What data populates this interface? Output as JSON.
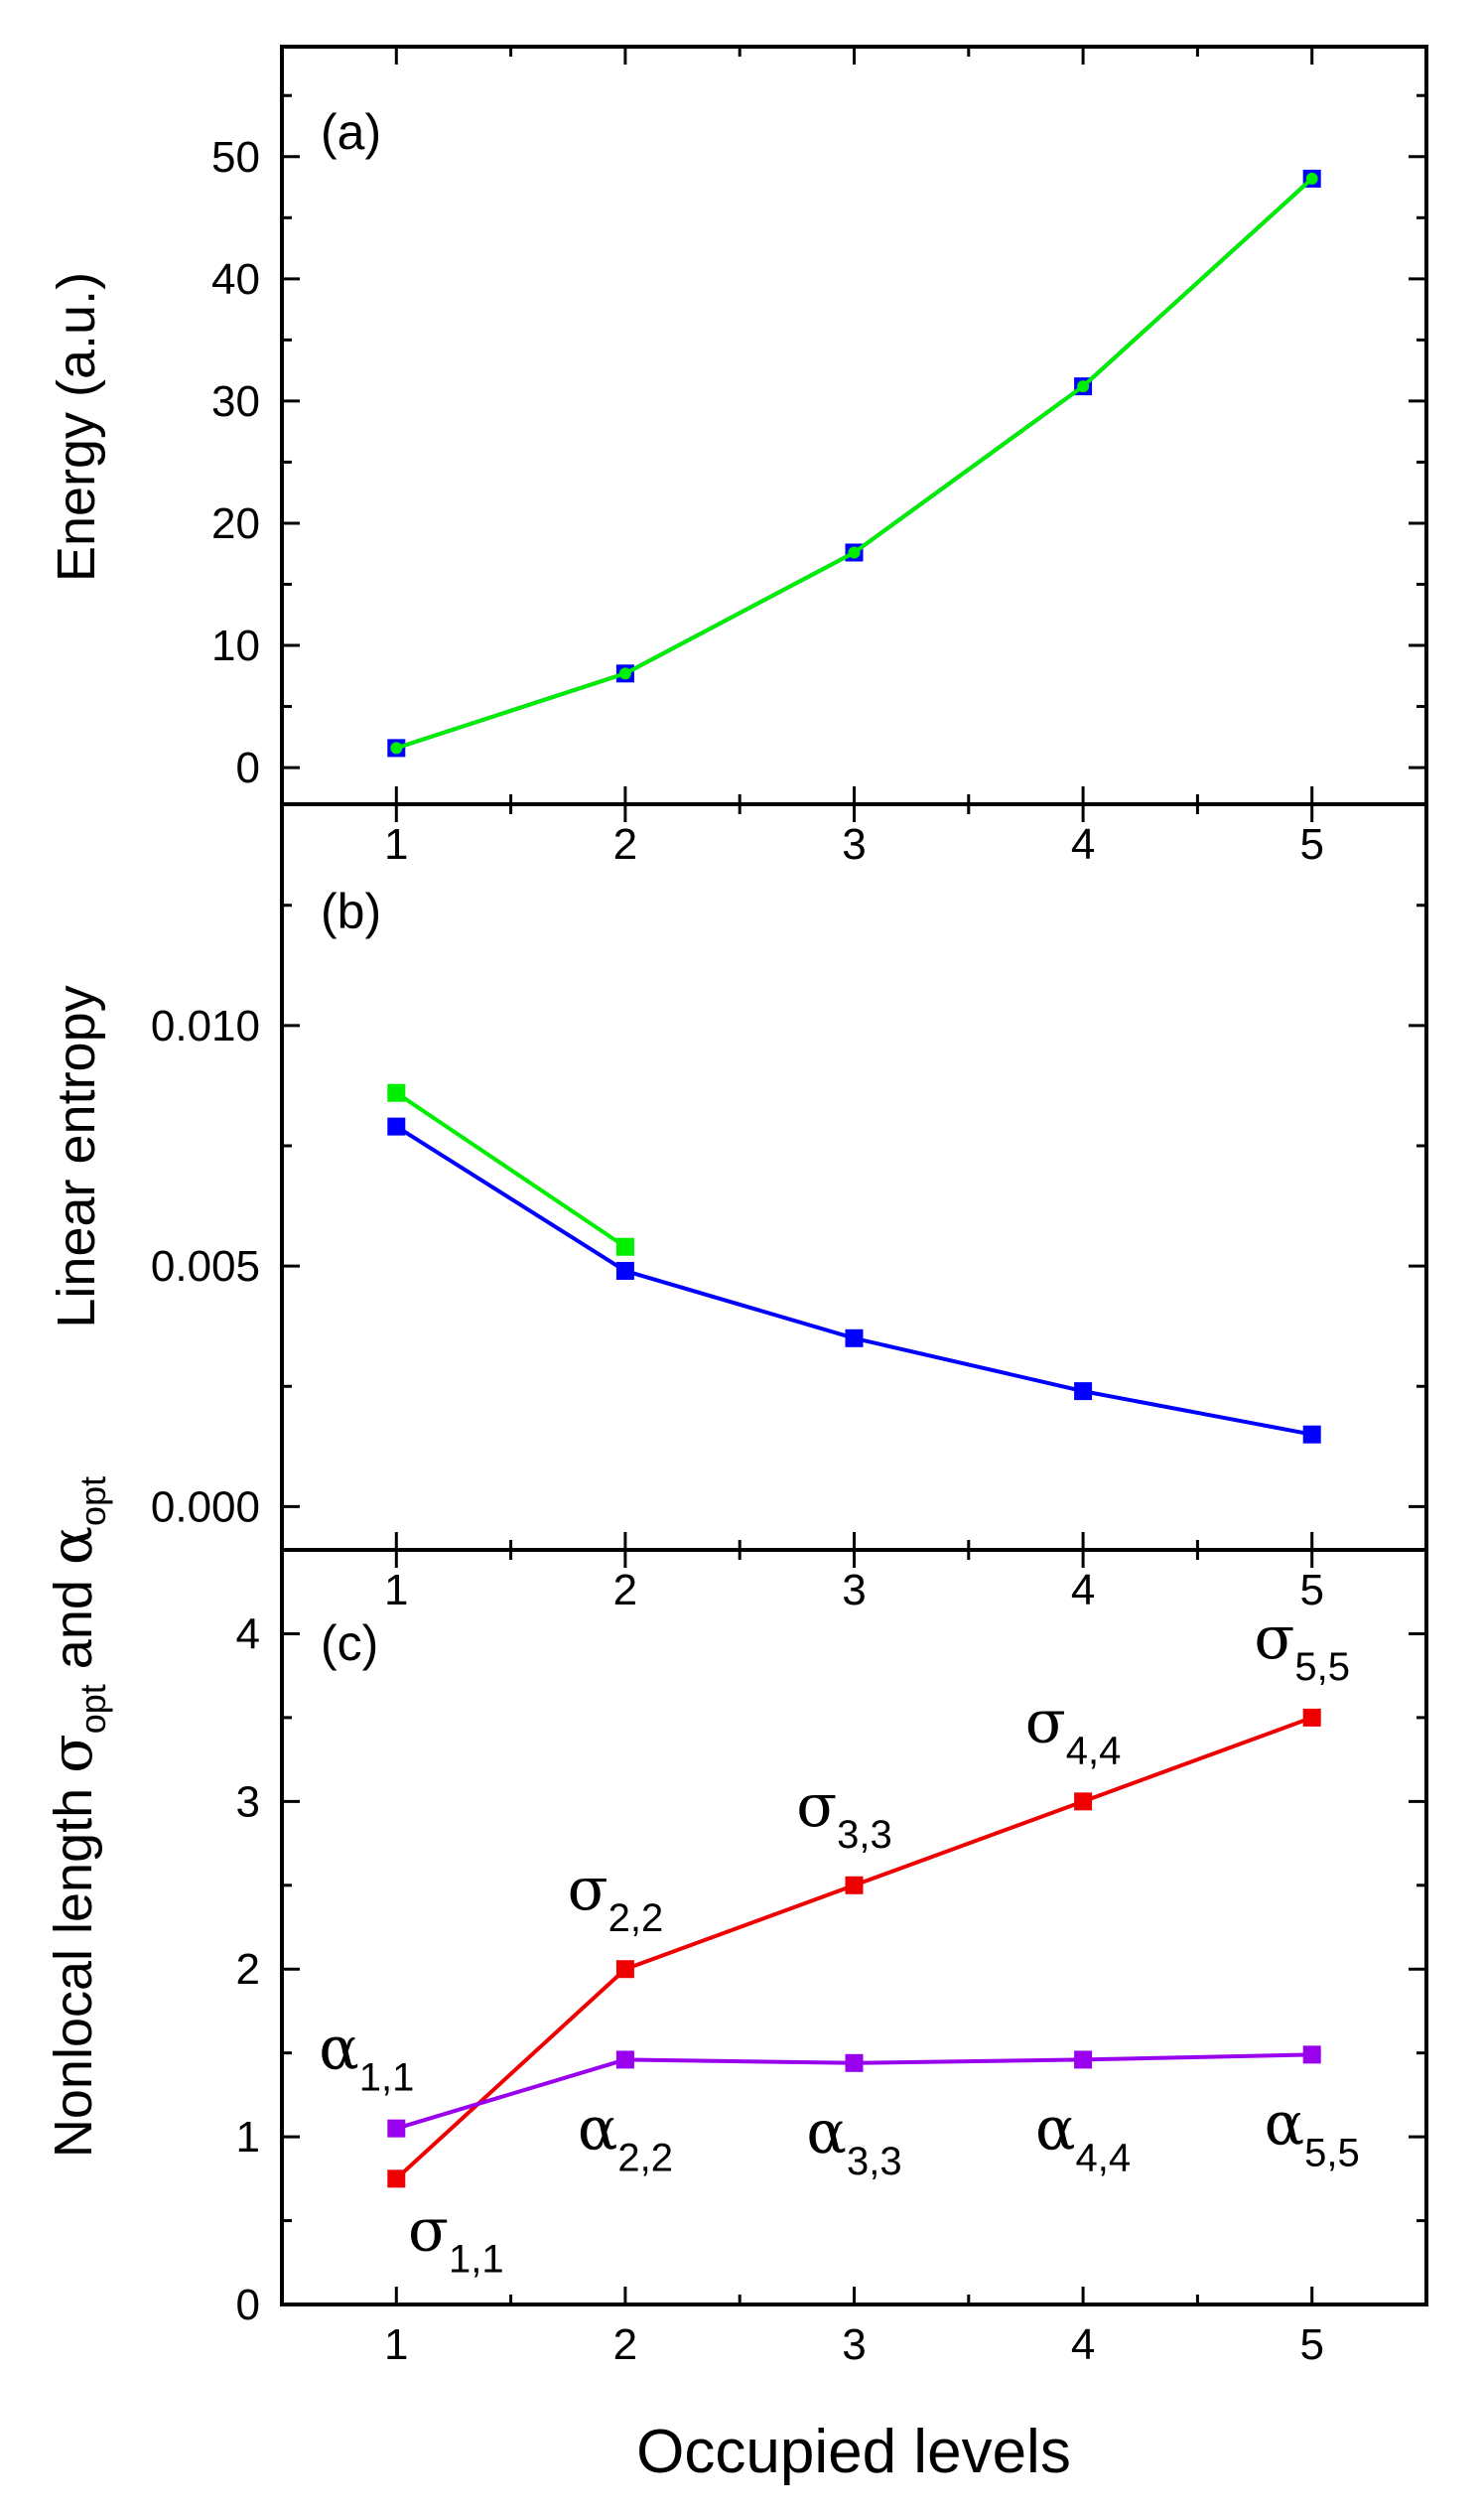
{
  "chart_data": [
    {
      "panel_label": "(a)",
      "type": "line",
      "x": [
        1,
        2,
        3,
        4,
        5
      ],
      "xlim": [
        0.5,
        5.5
      ],
      "ylim": [
        -3,
        59
      ],
      "x_ticks": [
        1,
        2,
        3,
        4,
        5
      ],
      "y_ticks": [
        "0",
        "10",
        "20",
        "30",
        "40",
        "50"
      ],
      "y_tick_values": [
        0,
        10,
        20,
        30,
        40,
        50
      ],
      "ylabel": "Energy (a.u.)",
      "series": [
        {
          "name": "series-blue",
          "color": "#0000ff",
          "marker": "square",
          "values": [
            1.6,
            7.7,
            17.6,
            31.2,
            48.2
          ]
        },
        {
          "name": "series-green",
          "color": "#00ee00",
          "marker": "circle",
          "values": [
            1.6,
            7.7,
            17.6,
            31.2,
            48.2
          ]
        }
      ]
    },
    {
      "panel_label": "(b)",
      "type": "line",
      "x": [
        1,
        2,
        3,
        4,
        5
      ],
      "xlim": [
        0.5,
        5.5
      ],
      "ylim": [
        -0.0009,
        0.0146
      ],
      "x_ticks": [
        1,
        2,
        3,
        4,
        5
      ],
      "y_ticks": [
        "0.000",
        "0.005",
        "0.010"
      ],
      "y_tick_values": [
        0,
        0.005,
        0.01
      ],
      "ylabel": "Linear entropy",
      "series": [
        {
          "name": "series-green",
          "color": "#00ee00",
          "marker": "square",
          "x": [
            1,
            2
          ],
          "values": [
            0.0086,
            0.0054
          ]
        },
        {
          "name": "series-blue",
          "color": "#0000ff",
          "marker": "square",
          "x": [
            1,
            2,
            3,
            4,
            5
          ],
          "values": [
            0.0079,
            0.0049,
            0.0035,
            0.0024,
            0.0015
          ]
        }
      ]
    },
    {
      "panel_label": "(c)",
      "type": "line",
      "x": [
        1,
        2,
        3,
        4,
        5
      ],
      "xlim": [
        0.5,
        5.5
      ],
      "ylim": [
        0,
        4.5
      ],
      "x_ticks": [
        1,
        2,
        3,
        4,
        5
      ],
      "y_ticks": [
        "0",
        "1",
        "2",
        "3",
        "4"
      ],
      "y_tick_values": [
        0,
        1,
        2,
        3,
        4
      ],
      "ylabel_parts": {
        "prefix": "Nonlocal length ",
        "sigma": "σ",
        "opt": "opt",
        "middle": " and ",
        "alpha": "α"
      },
      "xlabel": "Occupied levels",
      "series": [
        {
          "name": "sigma",
          "color": "#ee0000",
          "marker": "square",
          "values": [
            0.75,
            2.0,
            2.5,
            3.0,
            3.5
          ],
          "symbol": "σ",
          "annotations": [
            "1,1",
            "2,2",
            "3,3",
            "4,4",
            "5,5"
          ]
        },
        {
          "name": "alpha",
          "color": "#9900ee",
          "marker": "square",
          "values": [
            1.05,
            1.46,
            1.44,
            1.46,
            1.49
          ],
          "symbol": "α",
          "annotations": [
            "1,1",
            "2,2",
            "3,3",
            "4,4",
            "5,5"
          ]
        }
      ]
    }
  ]
}
